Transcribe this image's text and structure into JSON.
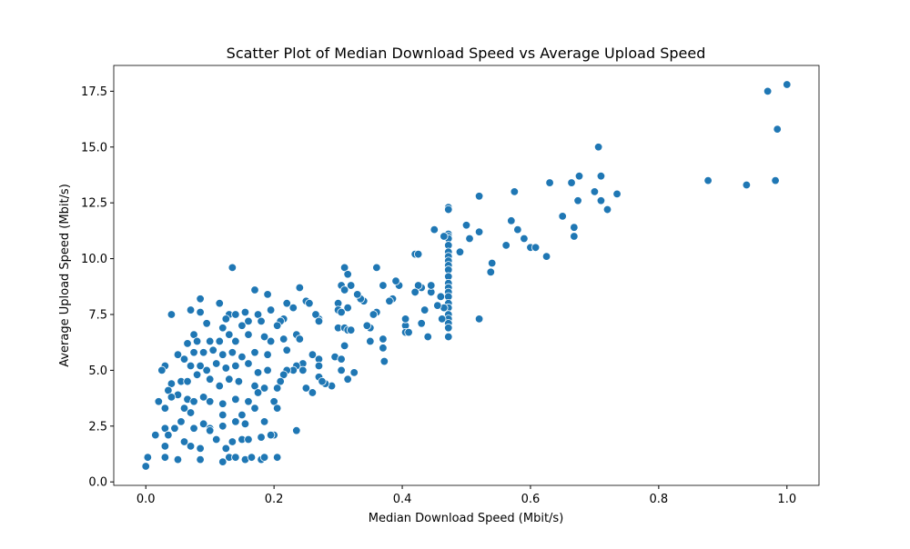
{
  "chart_data": {
    "type": "scatter",
    "title": "Scatter Plot of Median Download Speed vs Average Upload Speed",
    "xlabel": "Median Download Speed (Mbit/s)",
    "ylabel": "Average Upload Speed (Mbit/s)",
    "color": "#1f77b4",
    "grid": false,
    "xlim": [
      -0.05,
      1.05
    ],
    "ylim": [
      -0.155,
      18.655
    ],
    "xticks": [
      {
        "value": 0,
        "label": "0.0"
      },
      0.2,
      0.4,
      0.6,
      0.8,
      {
        "value": 1,
        "label": "1.0"
      }
    ],
    "yticks": [
      {
        "value": 0,
        "label": "0.0"
      },
      2.5,
      {
        "value": 5,
        "label": "5.0"
      },
      7.5,
      {
        "value": 10,
        "label": "10.0"
      },
      12.5,
      {
        "value": 15,
        "label": "15.0"
      },
      17.5
    ],
    "x": [
      1.0,
      0.97,
      0.985,
      0.877,
      0.937,
      0.982,
      0.706,
      0.71,
      0.676,
      0.7,
      0.735,
      0.71,
      0.674,
      0.72,
      0.664,
      0.63,
      0.575,
      0.52,
      0.65,
      0.668,
      0.668,
      0.57,
      0.58,
      0.59,
      0.6,
      0.608,
      0.625,
      0.562,
      0.54,
      0.538,
      0.52,
      0.5,
      0.505,
      0.49,
      0.52,
      0.45,
      0.42,
      0.425,
      0.472,
      0.472,
      0.472,
      0.472,
      0.472,
      0.472,
      0.472,
      0.472,
      0.472,
      0.472,
      0.472,
      0.472,
      0.472,
      0.472,
      0.472,
      0.472,
      0.472,
      0.472,
      0.472,
      0.472,
      0.472,
      0.472,
      0.472,
      0.465,
      0.46,
      0.465,
      0.462,
      0.455,
      0.445,
      0.445,
      0.43,
      0.425,
      0.42,
      0.435,
      0.44,
      0.43,
      0.405,
      0.405,
      0.41,
      0.405,
      0.395,
      0.39,
      0.385,
      0.38,
      0.37,
      0.36,
      0.36,
      0.355,
      0.35,
      0.345,
      0.34,
      0.335,
      0.33,
      0.37,
      0.37,
      0.372,
      0.35,
      0.32,
      0.31,
      0.315,
      0.305,
      0.31,
      0.3,
      0.3,
      0.305,
      0.315,
      0.3,
      0.31,
      0.315,
      0.32,
      0.31,
      0.295,
      0.305,
      0.305,
      0.315,
      0.325,
      0.29,
      0.28,
      0.27,
      0.265,
      0.27,
      0.25,
      0.255,
      0.24,
      0.23,
      0.235,
      0.24,
      0.245,
      0.235,
      0.23,
      0.245,
      0.26,
      0.27,
      0.27,
      0.27,
      0.275,
      0.25,
      0.26,
      0.235,
      0.22,
      0.215,
      0.21,
      0.205,
      0.215,
      0.22,
      0.22,
      0.215,
      0.21,
      0.205,
      0.2,
      0.205,
      0.2,
      0.205,
      0.135,
      0.04,
      0.17,
      0.19,
      0.085,
      0.115,
      0.07,
      0.085,
      0.095,
      0.13,
      0.14,
      0.155,
      0.16,
      0.175,
      0.18,
      0.195,
      0.12,
      0.125,
      0.15,
      0.13,
      0.075,
      0.065,
      0.08,
      0.1,
      0.115,
      0.14,
      0.16,
      0.185,
      0.195,
      0.05,
      0.06,
      0.075,
      0.09,
      0.105,
      0.12,
      0.135,
      0.15,
      0.17,
      0.19,
      0.03,
      0.025,
      0.07,
      0.085,
      0.095,
      0.11,
      0.125,
      0.14,
      0.16,
      0.175,
      0.19,
      0.04,
      0.055,
      0.065,
      0.08,
      0.1,
      0.115,
      0.13,
      0.145,
      0.17,
      0.185,
      0.035,
      0.05,
      0.04,
      0.065,
      0.075,
      0.09,
      0.1,
      0.12,
      0.14,
      0.16,
      0.175,
      0.02,
      0.03,
      0.06,
      0.07,
      0.12,
      0.15,
      0.17,
      0.055,
      0.075,
      0.09,
      0.1,
      0.12,
      0.14,
      0.155,
      0.185,
      0.03,
      0.035,
      0.045,
      0.015,
      0.06,
      0.07,
      0.085,
      0.1,
      0.11,
      0.125,
      0.135,
      0.15,
      0.16,
      0.18,
      0.195,
      0.03,
      0.03,
      0.05,
      0.085,
      0.12,
      0.13,
      0.14,
      0.155,
      0.165,
      0.18,
      0.185,
      0.003,
      0.0
    ],
    "values": [
      17.8,
      17.5,
      15.8,
      13.5,
      13.3,
      13.5,
      15.0,
      13.7,
      13.7,
      13.0,
      12.9,
      12.6,
      12.6,
      12.2,
      13.4,
      13.4,
      13.0,
      12.8,
      11.9,
      11.4,
      11.0,
      11.7,
      11.3,
      10.9,
      10.5,
      10.5,
      10.1,
      10.6,
      9.8,
      9.4,
      11.2,
      11.5,
      10.9,
      10.3,
      7.3,
      11.3,
      10.2,
      10.2,
      12.3,
      12.2,
      11.1,
      11.0,
      10.9,
      10.6,
      10.3,
      10.1,
      9.9,
      9.7,
      9.5,
      9.2,
      8.9,
      8.7,
      8.5,
      8.3,
      8.0,
      7.8,
      7.5,
      7.3,
      7.1,
      6.9,
      6.5,
      11.0,
      8.3,
      7.8,
      7.3,
      7.9,
      8.5,
      8.8,
      8.7,
      8.8,
      8.5,
      7.7,
      6.5,
      7.1,
      7.0,
      6.7,
      6.7,
      7.3,
      8.8,
      9.0,
      8.2,
      8.1,
      8.8,
      9.6,
      7.6,
      7.5,
      6.9,
      7.0,
      8.1,
      8.2,
      8.4,
      6.4,
      6.0,
      5.4,
      6.3,
      8.8,
      9.6,
      9.3,
      8.8,
      8.6,
      8.0,
      7.7,
      7.6,
      7.8,
      6.9,
      6.9,
      6.8,
      6.8,
      6.1,
      5.6,
      5.5,
      5.0,
      4.6,
      4.9,
      4.3,
      4.4,
      7.3,
      7.5,
      7.2,
      8.1,
      8.0,
      8.7,
      7.8,
      6.6,
      6.4,
      5.3,
      5.2,
      5.0,
      5.0,
      5.7,
      5.5,
      5.2,
      4.7,
      4.5,
      4.2,
      4.0,
      2.3,
      8.0,
      7.3,
      7.2,
      7.0,
      6.4,
      5.9,
      5.0,
      4.8,
      4.5,
      4.2,
      3.6,
      3.3,
      2.1,
      1.1,
      9.6,
      7.5,
      8.6,
      8.4,
      8.2,
      8.0,
      7.7,
      7.6,
      7.1,
      7.5,
      7.5,
      7.6,
      7.2,
      7.5,
      7.2,
      7.7,
      6.9,
      7.3,
      7.0,
      6.6,
      6.6,
      6.2,
      6.3,
      6.3,
      6.3,
      6.3,
      6.6,
      6.5,
      6.3,
      5.7,
      5.5,
      5.8,
      5.8,
      5.9,
      5.7,
      5.8,
      5.6,
      5.8,
      5.7,
      5.2,
      5.0,
      5.2,
      5.2,
      5.0,
      5.3,
      5.1,
      5.2,
      5.3,
      4.9,
      5.0,
      4.4,
      4.5,
      4.5,
      4.8,
      4.6,
      4.3,
      4.6,
      4.5,
      4.3,
      4.2,
      4.1,
      3.9,
      3.8,
      3.7,
      3.6,
      3.8,
      3.6,
      3.5,
      3.7,
      3.6,
      4.0,
      3.6,
      3.3,
      3.3,
      3.1,
      3.0,
      3.0,
      3.3,
      2.7,
      2.4,
      2.6,
      2.4,
      2.5,
      2.7,
      2.6,
      2.7,
      2.4,
      2.1,
      2.4,
      2.1,
      1.8,
      1.6,
      1.5,
      2.3,
      1.9,
      1.5,
      1.8,
      1.9,
      1.9,
      2.0,
      2.1,
      1.6,
      1.1,
      1.0,
      1.0,
      0.9,
      1.1,
      1.1,
      1.0,
      1.1,
      1.0,
      1.1,
      1.1,
      0.7
    ]
  }
}
